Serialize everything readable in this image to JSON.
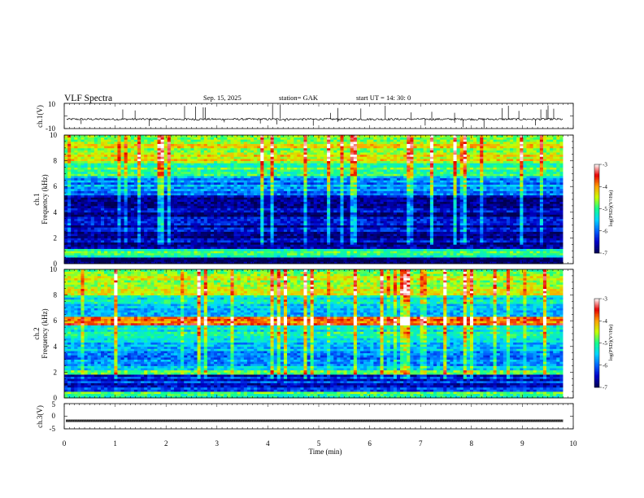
{
  "header": {
    "title": "VLF  Spectra",
    "date": "Sep. 15, 2025",
    "station": "station= GAK",
    "start_ut": "start  UT  =    14: 30: 0"
  },
  "colors": {
    "colormap": [
      "#000050",
      "#0000c8",
      "#0064ff",
      "#00d7ff",
      "#14ff8c",
      "#c8ff00",
      "#ffa000",
      "#e60000",
      "#ffffff"
    ],
    "trace": "#000000"
  },
  "chart_data": [
    {
      "type": "line",
      "panel": "ch1",
      "ylabel": "ch.1(V)",
      "ylim": [
        -10,
        10
      ],
      "yticks": [
        "10",
        "-10"
      ],
      "baseline": 0,
      "note_series": "noisy trace near 0 V with spikes"
    },
    {
      "type": "heatmap",
      "panel": "ch1-spectrogram",
      "ylabel_top": "ch.1",
      "ylabel": "Frequency (kHz)",
      "ylim": [
        0,
        10
      ],
      "yticks": [
        "0",
        "2",
        "4",
        "6",
        "8",
        "10"
      ],
      "colorbar": {
        "label": "log(PSD)(V²/Hz)",
        "range": [
          -7,
          -3
        ],
        "ticks": [
          "-3",
          "-4",
          "-5",
          "-6",
          "-7"
        ]
      },
      "bands": [
        {
          "from": 0,
          "to": 0.5,
          "level": -6.8
        },
        {
          "from": 0.5,
          "to": 1.2,
          "level": -5.0
        },
        {
          "from": 1.2,
          "to": 5.3,
          "level": -6.6
        },
        {
          "from": 5.3,
          "to": 6.8,
          "level": -5.8
        },
        {
          "from": 6.8,
          "to": 8.0,
          "level": -4.9
        },
        {
          "from": 8.0,
          "to": 10.0,
          "level": -4.5
        }
      ]
    },
    {
      "type": "heatmap",
      "panel": "ch2-spectrogram",
      "ylabel_top": "ch.2",
      "ylabel": "Frequency (kHz)",
      "ylim": [
        0,
        10
      ],
      "yticks": [
        "0",
        "2",
        "4",
        "6",
        "8",
        "10"
      ],
      "colorbar": {
        "label": "log(PSD)(V²/Hz)",
        "range": [
          -7,
          -3
        ],
        "ticks": [
          "-3",
          "-4",
          "-5",
          "-6",
          "-7"
        ]
      },
      "bands": [
        {
          "from": 0,
          "to": 0.5,
          "level": -5.0
        },
        {
          "from": 0.5,
          "to": 1.8,
          "level": -6.3
        },
        {
          "from": 1.8,
          "to": 2.2,
          "level": -5.0
        },
        {
          "from": 2.2,
          "to": 4.3,
          "level": -5.7
        },
        {
          "from": 4.3,
          "to": 5.6,
          "level": -5.2
        },
        {
          "from": 5.6,
          "to": 6.4,
          "level": -3.9
        },
        {
          "from": 6.4,
          "to": 8.0,
          "level": -5.4
        },
        {
          "from": 8.0,
          "to": 10.0,
          "level": -4.6
        }
      ]
    },
    {
      "type": "line",
      "panel": "ch3",
      "ylabel": "ch.3(V)",
      "ylim": [
        -5,
        5
      ],
      "yticks": [
        "5",
        "0",
        "-5"
      ],
      "baseline": -1.8
    }
  ],
  "xaxis": {
    "label": "Time  (min)",
    "range": [
      0,
      10
    ],
    "data_end": 9.8,
    "ticks": [
      "0",
      "1",
      "2",
      "3",
      "4",
      "5",
      "6",
      "7",
      "8",
      "9",
      "10"
    ]
  }
}
